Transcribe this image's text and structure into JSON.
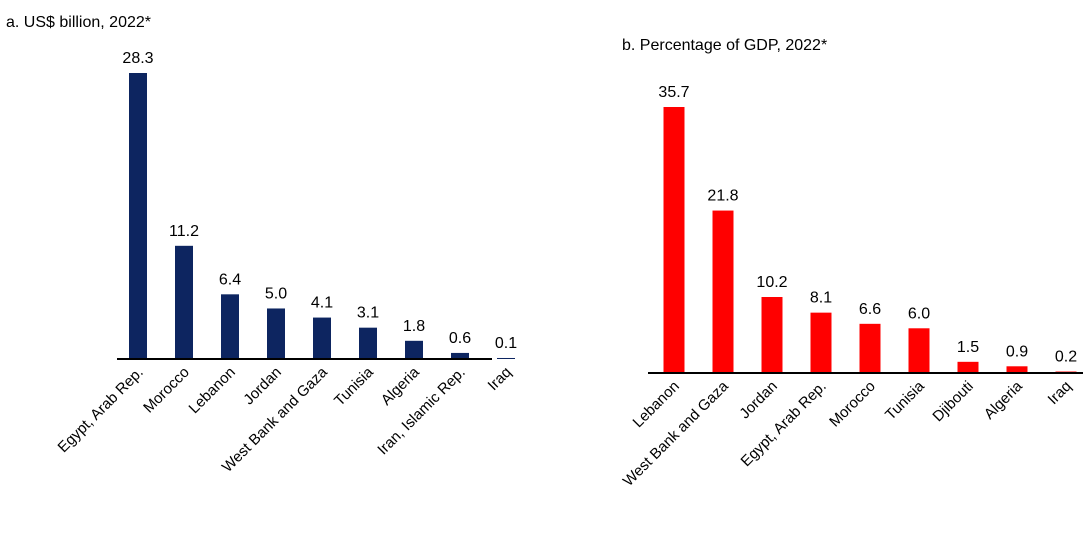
{
  "chart_data": [
    {
      "type": "bar",
      "title": "a. US$ billion, 2022*",
      "color": "#0d2560",
      "categories": [
        "Egypt, Arab Rep.",
        "Morocco",
        "Lebanon",
        "Jordan",
        "West Bank and Gaza",
        "Tunisia",
        "Algeria",
        "Iran, Islamic Rep.",
        "Iraq"
      ],
      "values": [
        28.3,
        11.2,
        6.4,
        5.0,
        4.1,
        3.1,
        1.8,
        0.6,
        0.1
      ],
      "value_labels": [
        "28.3",
        "11.2",
        "6.4",
        "5.0",
        "4.1",
        "3.1",
        "1.8",
        "0.6",
        "0.1"
      ],
      "xlabel": "",
      "ylabel": "",
      "ylim": [
        0,
        28.3
      ],
      "grid": false
    },
    {
      "type": "bar",
      "title": "b. Percentage of GDP, 2022*",
      "color": "#ff0000",
      "categories": [
        "Lebanon",
        "West Bank and Gaza",
        "Jordan",
        "Egypt, Arab Rep.",
        "Morocco",
        "Tunisia",
        "Djibouti",
        "Algeria",
        "Iraq"
      ],
      "values": [
        35.7,
        21.8,
        10.2,
        8.1,
        6.6,
        6.0,
        1.5,
        0.9,
        0.2
      ],
      "value_labels": [
        "35.7",
        "21.8",
        "10.2",
        "8.1",
        "6.6",
        "6.0",
        "1.5",
        "0.9",
        "0.2"
      ],
      "xlabel": "",
      "ylabel": "",
      "ylim": [
        0,
        35.7
      ],
      "grid": false
    }
  ]
}
